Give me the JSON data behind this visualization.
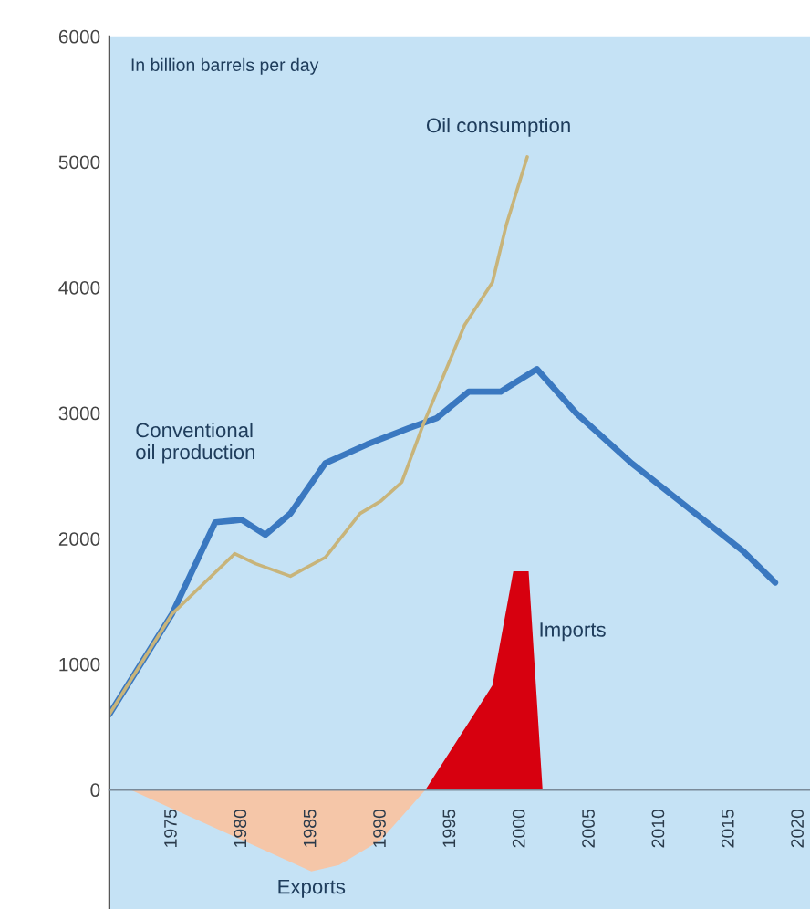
{
  "chart_data": {
    "type": "line",
    "annotations": [
      "In billion barrels per day"
    ],
    "xlim": [
      1970.5,
      2020.8
    ],
    "ylim": [
      -950,
      6000
    ],
    "xticks": [
      1975,
      1980,
      1985,
      1990,
      1995,
      2000,
      2005,
      2010,
      2015,
      2020
    ],
    "yticks": [
      0,
      1000,
      2000,
      3000,
      4000,
      5000,
      6000
    ],
    "grid": false,
    "legend": false,
    "series": [
      {
        "name": "Exports",
        "type": "area",
        "color": "#f5c6a8",
        "x": [
          1972,
          1975,
          1980,
          1985,
          1987,
          1990,
          1992,
          1993.2
        ],
        "values": [
          0,
          -150,
          -400,
          -650,
          -600,
          -400,
          -150,
          0
        ]
      },
      {
        "name": "Imports",
        "type": "area",
        "color": "#d7000f",
        "x": [
          1993.2,
          1998,
          1999.5,
          2000.6,
          2001.6
        ],
        "values": [
          0,
          830,
          1740,
          1740,
          0
        ]
      },
      {
        "name": "Conventional\noil production",
        "color": "#3a78c0",
        "x": [
          1970.5,
          1975,
          1978.1,
          1980,
          1981.7,
          1983.5,
          1986,
          1989,
          1992,
          1994,
          1996.3,
          1998.6,
          2001.2,
          2004,
          2008,
          2012,
          2016,
          2018.3
        ],
        "values": [
          600,
          1400,
          2130,
          2150,
          2030,
          2200,
          2600,
          2750,
          2880,
          2960,
          3170,
          3170,
          3350,
          3000,
          2600,
          2250,
          1900,
          1650
        ]
      },
      {
        "name": "Oil consumption",
        "color": "#c8b47a",
        "x": [
          1970.5,
          1975,
          1979.5,
          1981,
          1983.5,
          1986,
          1988.5,
          1990,
          1991.5,
          1993,
          1996,
          1998,
          1999,
          2000.5
        ],
        "values": [
          600,
          1400,
          1880,
          1800,
          1700,
          1850,
          2200,
          2300,
          2450,
          2900,
          3700,
          4040,
          4500,
          5040
        ]
      }
    ]
  }
}
